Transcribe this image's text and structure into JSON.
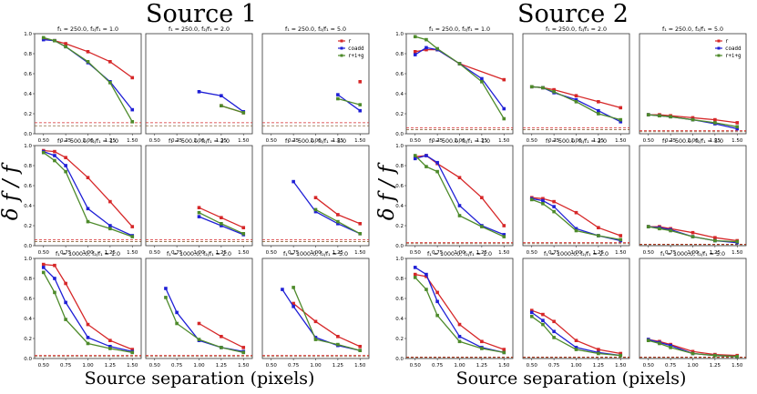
{
  "figure": {
    "ylabel": "δ f / f",
    "xlabel": "Source separation (pixels)"
  },
  "legend": [
    {
      "label": "r",
      "color": "#d62728"
    },
    {
      "label": "coadd",
      "color": "#1f1fd6"
    },
    {
      "label": "r+i+g",
      "color": "#4d8a2a"
    }
  ],
  "x_ticks": [
    "0.50",
    "0.75",
    "1.00",
    "1.25",
    "1.50"
  ],
  "y_ticks": [
    "0.0",
    "0.2",
    "0.4",
    "0.6",
    "0.8",
    "1.0"
  ],
  "chart_data": [
    {
      "title": "Source 1",
      "type": "line",
      "xlim": [
        0.4,
        1.6
      ],
      "ylim": [
        0,
        1
      ],
      "panels": [
        {
          "title": "f₁ = 250.0, f₂/f₁ = 1.0",
          "x": [
            0.5,
            0.625,
            0.75,
            1.0,
            1.25,
            1.5
          ],
          "series": [
            {
              "name": "r",
              "values": [
                0.95,
                0.93,
                0.9,
                0.82,
                0.72,
                0.56
              ]
            },
            {
              "name": "coadd",
              "values": [
                0.94,
                0.93,
                0.87,
                0.71,
                0.52,
                0.24
              ]
            },
            {
              "name": "r+i+g",
              "values": [
                0.96,
                0.93,
                0.87,
                0.72,
                0.51,
                0.12
              ]
            }
          ],
          "threshold": [
            0.11,
            0.08
          ]
        },
        {
          "title": "f₁ = 250.0, f₂/f₁ = 2.0",
          "x": [
            1.0,
            1.25,
            1.5
          ],
          "series": [
            {
              "name": "r",
              "values": [
                null,
                0.28,
                0.21
              ]
            },
            {
              "name": "coadd",
              "values": [
                0.42,
                0.38,
                0.22
              ]
            },
            {
              "name": "r+i+g",
              "values": [
                null,
                0.28,
                0.21
              ]
            }
          ],
          "threshold": [
            0.11,
            0.08
          ]
        },
        {
          "title": "f₁ = 250.0, f₂/f₁ = 5.0",
          "x": [
            1.25,
            1.5
          ],
          "series": [
            {
              "name": "r",
              "values": [
                null,
                0.52
              ]
            },
            {
              "name": "coadd",
              "values": [
                0.39,
                0.23
              ]
            },
            {
              "name": "r+i+g",
              "values": [
                0.35,
                0.29
              ]
            }
          ],
          "threshold": [
            0.11,
            0.08
          ]
        },
        {
          "title": "f₁ = 500.0, f₂/f₁ = 1.0",
          "x": [
            0.5,
            0.625,
            0.75,
            1.0,
            1.25,
            1.5
          ],
          "series": [
            {
              "name": "r",
              "values": [
                0.95,
                0.94,
                0.88,
                0.68,
                0.44,
                0.19
              ]
            },
            {
              "name": "coadd",
              "values": [
                0.94,
                0.9,
                0.8,
                0.37,
                0.2,
                0.1
              ]
            },
            {
              "name": "r+i+g",
              "values": [
                0.93,
                0.85,
                0.74,
                0.24,
                0.17,
                0.09
              ]
            }
          ],
          "threshold": [
            0.06,
            0.04
          ]
        },
        {
          "title": "f₁ = 500.0, f₂/f₁ = 2.0",
          "x": [
            1.0,
            1.25,
            1.5
          ],
          "series": [
            {
              "name": "r",
              "values": [
                0.38,
                0.28,
                0.18
              ]
            },
            {
              "name": "coadd",
              "values": [
                0.29,
                0.2,
                0.11
              ]
            },
            {
              "name": "r+i+g",
              "values": [
                0.33,
                0.22,
                0.12
              ]
            }
          ],
          "threshold": [
            0.06,
            0.04
          ]
        },
        {
          "title": "f₁ = 500.0, f₂/f₁ = 5.0",
          "x": [
            0.75,
            1.0,
            1.25,
            1.5
          ],
          "series": [
            {
              "name": "r",
              "values": [
                null,
                0.48,
                0.31,
                0.22
              ]
            },
            {
              "name": "coadd",
              "values": [
                0.64,
                0.34,
                0.22,
                0.12
              ]
            },
            {
              "name": "r+i+g",
              "values": [
                null,
                0.36,
                0.24,
                0.12
              ]
            }
          ],
          "threshold": [
            0.06,
            0.04
          ]
        },
        {
          "title": "f₁ = 1000.0, f₂/f₁ = 1.0",
          "x": [
            0.5,
            0.625,
            0.75,
            1.0,
            1.25,
            1.5
          ],
          "series": [
            {
              "name": "r",
              "values": [
                0.94,
                0.93,
                0.75,
                0.34,
                0.18,
                0.09
              ]
            },
            {
              "name": "coadd",
              "values": [
                0.91,
                0.8,
                0.56,
                0.21,
                0.12,
                0.07
              ]
            },
            {
              "name": "r+i+g",
              "values": [
                0.86,
                0.66,
                0.39,
                0.15,
                0.1,
                0.06
              ]
            }
          ],
          "threshold": [
            0.03,
            0.02
          ]
        },
        {
          "title": "f₁ = 1000.0, f₂/f₁ = 2.0",
          "x": [
            0.5,
            0.625,
            0.75,
            1.0,
            1.25,
            1.5
          ],
          "series": [
            {
              "name": "r",
              "values": [
                null,
                null,
                null,
                0.35,
                0.22,
                0.11
              ]
            },
            {
              "name": "coadd",
              "values": [
                null,
                0.7,
                0.46,
                0.18,
                0.11,
                0.07
              ]
            },
            {
              "name": "r+i+g",
              "values": [
                null,
                0.61,
                0.35,
                0.19,
                0.11,
                0.06
              ]
            }
          ],
          "threshold": [
            0.03,
            0.02
          ]
        },
        {
          "title": "f₁ = 1000.0, f₂/f₁ = 5.0",
          "x": [
            0.625,
            0.75,
            1.0,
            1.25,
            1.5
          ],
          "series": [
            {
              "name": "r",
              "values": [
                null,
                0.55,
                0.37,
                0.22,
                0.12
              ]
            },
            {
              "name": "coadd",
              "values": [
                0.69,
                0.52,
                0.21,
                0.13,
                0.08
              ]
            },
            {
              "name": "r+i+g",
              "values": [
                null,
                0.71,
                0.19,
                0.14,
                0.08
              ]
            }
          ],
          "threshold": [
            0.03,
            0.02
          ]
        }
      ]
    },
    {
      "title": "Source 2",
      "type": "line",
      "xlim": [
        0.4,
        1.6
      ],
      "ylim": [
        0,
        1
      ],
      "panels": [
        {
          "title": "f₁ = 250.0, f₂/f₁ = 1.0",
          "x": [
            0.5,
            0.625,
            0.75,
            1.0,
            1.25,
            1.5
          ],
          "series": [
            {
              "name": "r",
              "values": [
                0.82,
                0.84,
                0.84,
                0.7,
                null,
                0.54
              ]
            },
            {
              "name": "coadd",
              "values": [
                0.79,
                0.86,
                0.84,
                0.7,
                0.55,
                0.25
              ]
            },
            {
              "name": "r+i+g",
              "values": [
                0.97,
                0.94,
                0.85,
                0.7,
                0.52,
                0.15
              ]
            }
          ],
          "threshold": [
            0.06,
            0.04
          ]
        },
        {
          "title": "f₁ = 250.0, f₂/f₁ = 2.0",
          "x": [
            0.5,
            0.625,
            0.75,
            1.0,
            1.25,
            1.5
          ],
          "series": [
            {
              "name": "r",
              "values": [
                0.47,
                0.46,
                0.44,
                0.38,
                0.32,
                0.26
              ]
            },
            {
              "name": "coadd",
              "values": [
                0.47,
                0.46,
                0.41,
                0.34,
                0.23,
                0.12
              ]
            },
            {
              "name": "r+i+g",
              "values": [
                0.47,
                0.46,
                0.42,
                0.32,
                0.2,
                0.14
              ]
            }
          ],
          "threshold": [
            0.06,
            0.04
          ]
        },
        {
          "title": "f₁ = 250.0, f₂/f₁ = 5.0",
          "x": [
            0.5,
            0.625,
            0.75,
            1.0,
            1.25,
            1.5
          ],
          "series": [
            {
              "name": "r",
              "values": [
                0.19,
                0.19,
                0.18,
                0.16,
                0.14,
                0.11
              ]
            },
            {
              "name": "coadd",
              "values": [
                0.19,
                0.18,
                0.17,
                0.14,
                0.1,
                0.05
              ]
            },
            {
              "name": "r+i+g",
              "values": [
                0.19,
                0.18,
                0.17,
                0.14,
                0.11,
                0.07
              ]
            }
          ],
          "threshold": [
            0.03,
            0.02
          ]
        },
        {
          "title": "f₁ = 500.0, f₂/f₁ = 1.0",
          "x": [
            0.5,
            0.625,
            0.75,
            1.0,
            1.25,
            1.5
          ],
          "series": [
            {
              "name": "r",
              "values": [
                0.89,
                0.9,
                0.82,
                0.68,
                0.48,
                0.2
              ]
            },
            {
              "name": "coadd",
              "values": [
                0.87,
                0.9,
                0.83,
                0.4,
                0.2,
                0.11
              ]
            },
            {
              "name": "r+i+g",
              "values": [
                0.9,
                0.79,
                0.74,
                0.3,
                0.19,
                0.09
              ]
            }
          ],
          "threshold": [
            0.03,
            0.02
          ]
        },
        {
          "title": "f₁ = 500.0, f₂/f₁ = 2.0",
          "x": [
            0.5,
            0.625,
            0.75,
            1.0,
            1.25,
            1.5
          ],
          "series": [
            {
              "name": "r",
              "values": [
                0.48,
                0.47,
                0.44,
                0.33,
                0.18,
                0.1
              ]
            },
            {
              "name": "coadd",
              "values": [
                0.47,
                0.45,
                0.39,
                0.17,
                0.1,
                0.05
              ]
            },
            {
              "name": "r+i+g",
              "values": [
                0.46,
                0.42,
                0.34,
                0.15,
                0.1,
                0.06
              ]
            }
          ],
          "threshold": [
            0.03,
            0.02
          ]
        },
        {
          "title": "f₁ = 500.0, f₂/f₁ = 5.0",
          "x": [
            0.5,
            0.625,
            0.75,
            1.0,
            1.25,
            1.5
          ],
          "series": [
            {
              "name": "r",
              "values": [
                0.19,
                0.19,
                0.17,
                0.13,
                0.08,
                0.05
              ]
            },
            {
              "name": "coadd",
              "values": [
                0.19,
                0.18,
                0.16,
                0.09,
                0.05,
                0.03
              ]
            },
            {
              "name": "r+i+g",
              "values": [
                0.19,
                0.17,
                0.15,
                0.09,
                0.05,
                0.04
              ]
            }
          ],
          "threshold": [
            0.015,
            0.01
          ]
        },
        {
          "title": "f₁ = 1000.0, f₂/f₁ = 1.0",
          "x": [
            0.5,
            0.625,
            0.75,
            1.0,
            1.25,
            1.5
          ],
          "series": [
            {
              "name": "r",
              "values": [
                0.84,
                0.82,
                0.66,
                0.34,
                0.17,
                0.09
              ]
            },
            {
              "name": "coadd",
              "values": [
                0.91,
                0.84,
                0.57,
                0.22,
                0.11,
                0.06
              ]
            },
            {
              "name": "r+i+g",
              "values": [
                0.81,
                0.69,
                0.43,
                0.17,
                0.1,
                0.06
              ]
            }
          ],
          "threshold": [
            0.015,
            0.01
          ]
        },
        {
          "title": "f₁ = 1000.0, f₂/f₁ = 2.0",
          "x": [
            0.5,
            0.625,
            0.75,
            1.0,
            1.25,
            1.5
          ],
          "series": [
            {
              "name": "r",
              "values": [
                0.48,
                0.44,
                0.37,
                0.18,
                0.09,
                0.05
              ]
            },
            {
              "name": "coadd",
              "values": [
                0.46,
                0.38,
                0.27,
                0.11,
                0.06,
                0.03
              ]
            },
            {
              "name": "r+i+g",
              "values": [
                0.42,
                0.34,
                0.21,
                0.09,
                0.05,
                0.03
              ]
            }
          ],
          "threshold": [
            0.015,
            0.01
          ]
        },
        {
          "title": "f₁ = 1000.0, f₂/f₁ = 5.0",
          "x": [
            0.5,
            0.625,
            0.75,
            1.0,
            1.25,
            1.5
          ],
          "series": [
            {
              "name": "r",
              "values": [
                0.19,
                0.17,
                0.14,
                0.07,
                0.04,
                0.03
              ]
            },
            {
              "name": "coadd",
              "values": [
                0.19,
                0.16,
                0.13,
                0.05,
                0.03,
                0.02
              ]
            },
            {
              "name": "r+i+g",
              "values": [
                0.18,
                0.15,
                0.11,
                0.05,
                0.03,
                0.02
              ]
            }
          ],
          "threshold": [
            0.015,
            0.01
          ]
        }
      ]
    }
  ]
}
